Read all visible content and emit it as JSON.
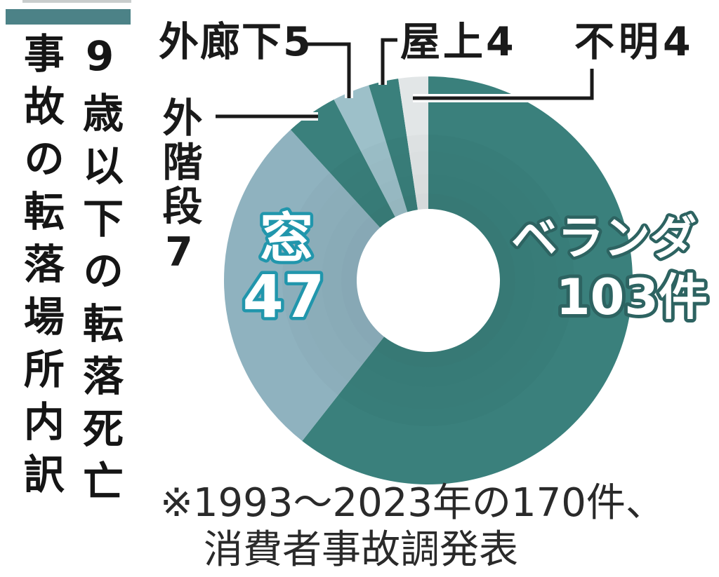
{
  "header": {
    "top_strip_color": "#C9CDCD",
    "bar_color": "#4C8287"
  },
  "title": {
    "text": "9歳以下の転落死亡\n事故の転落場所内訳"
  },
  "chart_data": {
    "type": "pie",
    "subtype": "donut",
    "title": "9歳以下の転落死亡事故の転落場所内訳",
    "total": 170,
    "unit": "件",
    "start_angle_deg": 0,
    "direction": "clockwise",
    "segments": [
      {
        "label": "ベランダ",
        "value": 103,
        "value_label": "103件",
        "color": "#3A807C"
      },
      {
        "label": "窓",
        "value": 47,
        "value_label": "47",
        "color": "#8FB2BF"
      },
      {
        "label": "外階段",
        "value": 7,
        "value_label": "7",
        "color": "#3A807C"
      },
      {
        "label": "外廊下",
        "value": 5,
        "value_label": "5",
        "color": "#9DC0C9"
      },
      {
        "label": "屋上",
        "value": 4,
        "value_label": "4",
        "color": "#3A807C"
      },
      {
        "label": "不明",
        "value": 4,
        "value_label": "4",
        "color": "#E2E6E7"
      }
    ],
    "label_styles": {
      "window_outline_color": "#2196AC",
      "veranda_outline_color": "#2D6361",
      "callout_text_color": "#1A1A1A"
    },
    "note_line1": "※1993〜2023年の170件、",
    "note_line2": "消費者事故調発表"
  }
}
